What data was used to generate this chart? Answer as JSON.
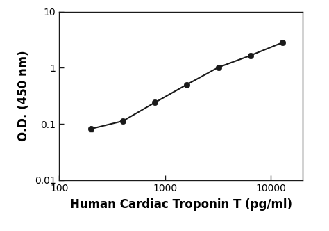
{
  "x_values": [
    200,
    400,
    800,
    1600,
    3200,
    6400,
    12800
  ],
  "y_values": [
    0.082,
    0.113,
    0.24,
    0.5,
    1.02,
    1.65,
    2.8
  ],
  "y_errors": [
    0.008,
    0.0,
    0.0,
    0.0,
    0.0,
    0.0,
    0.0
  ],
  "xlabel": "Human Cardiac Troponin T (pg/ml)",
  "ylabel": "O.D. (450 nm)",
  "xlim_log": [
    150,
    20000
  ],
  "ylim_log": [
    0.01,
    10
  ],
  "x_ticks": [
    100,
    1000,
    10000
  ],
  "y_ticks": [
    0.01,
    0.1,
    1,
    10
  ],
  "line_color": "#1a1a1a",
  "marker_color": "#1a1a1a",
  "marker_size": 6,
  "line_width": 1.5,
  "background_color": "#ffffff",
  "xlabel_fontsize": 12,
  "ylabel_fontsize": 12,
  "tick_fontsize": 10,
  "xlabel_fontweight": "bold",
  "ylabel_fontweight": "bold"
}
